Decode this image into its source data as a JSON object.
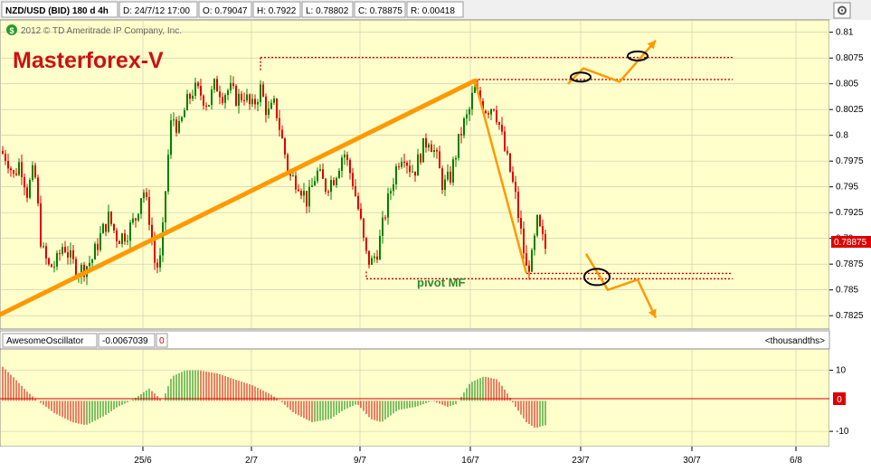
{
  "header": {
    "symbol": "NZD/USD (BID) 180 d 4h",
    "date": "D: 24/7/12 17:00",
    "open": "O: 0.79047",
    "high": "H: 0.7922",
    "low": "L: 0.78802",
    "close": "C: 0.78875",
    "range": "R: 0.00418"
  },
  "copyright": "2012 © TD Ameritrade IP Company, Inc.",
  "watermark": "Masterforex-V",
  "annotation_label": "pivot MF",
  "current_price_label": "0.78875",
  "oscillator": {
    "name": "AwesomeOscillator",
    "value": "-0.0067039",
    "flag": "0",
    "units": "<thousandths>",
    "zero_label": "0"
  },
  "colors": {
    "background": "#ffffcc",
    "up_candle": "#008000",
    "down_candle": "#dd0000",
    "trendline": "#ff9900",
    "level_line": "#dd0000",
    "label_green": "#2a8a2a",
    "watermark_red": "#cc1111"
  },
  "icons": {
    "settings": "gear-icon",
    "logo": "green-circle-icon"
  },
  "chart_data": [
    {
      "type": "candlestick",
      "title": "NZD/USD (BID) 180 d 4h",
      "x_ticks": [
        "25/6",
        "2/7",
        "9/7",
        "16/7",
        "23/7",
        "30/7",
        "6/8"
      ],
      "y_ticks": [
        0.81,
        0.8075,
        0.805,
        0.8025,
        0.8,
        0.7975,
        0.795,
        0.7925,
        0.79,
        0.7875,
        0.785,
        0.7825
      ],
      "ylim": [
        0.7812,
        0.8112
      ],
      "close_path": [
        [
          0,
          0.7985
        ],
        [
          8,
          0.7978
        ],
        [
          15,
          0.796
        ],
        [
          22,
          0.7975
        ],
        [
          30,
          0.7945
        ],
        [
          38,
          0.7968
        ],
        [
          46,
          0.789
        ],
        [
          54,
          0.7872
        ],
        [
          62,
          0.7875
        ],
        [
          70,
          0.7895
        ],
        [
          78,
          0.788
        ],
        [
          86,
          0.7868
        ],
        [
          94,
          0.7872
        ],
        [
          102,
          0.788
        ],
        [
          110,
          0.79
        ],
        [
          120,
          0.792
        ],
        [
          130,
          0.79
        ],
        [
          140,
          0.7905
        ],
        [
          150,
          0.792
        ],
        [
          158,
          0.795
        ],
        [
          165,
          0.792
        ],
        [
          172,
          0.787
        ],
        [
          178,
          0.788
        ],
        [
          184,
          0.796
        ],
        [
          190,
          0.802
        ],
        [
          198,
          0.8005
        ],
        [
          206,
          0.803
        ],
        [
          214,
          0.8045
        ],
        [
          222,
          0.804
        ],
        [
          230,
          0.803
        ],
        [
          238,
          0.805
        ],
        [
          246,
          0.804
        ],
        [
          254,
          0.8045
        ],
        [
          262,
          0.8035
        ],
        [
          270,
          0.804
        ],
        [
          278,
          0.8025
        ],
        [
          288,
          0.8045
        ],
        [
          296,
          0.802
        ],
        [
          304,
          0.803
        ],
        [
          312,
          0.7995
        ],
        [
          320,
          0.796
        ],
        [
          330,
          0.7955
        ],
        [
          340,
          0.7935
        ],
        [
          350,
          0.7965
        ],
        [
          360,
          0.795
        ],
        [
          370,
          0.796
        ],
        [
          380,
          0.7985
        ],
        [
          390,
          0.7955
        ],
        [
          398,
          0.792
        ],
        [
          404,
          0.7885
        ],
        [
          410,
          0.7875
        ],
        [
          418,
          0.789
        ],
        [
          426,
          0.7925
        ],
        [
          434,
          0.7955
        ],
        [
          440,
          0.7975
        ],
        [
          446,
          0.7985
        ],
        [
          452,
          0.797
        ],
        [
          458,
          0.7965
        ],
        [
          466,
          0.7985
        ],
        [
          474,
          0.7998
        ],
        [
          482,
          0.798
        ],
        [
          490,
          0.795
        ],
        [
          498,
          0.796
        ],
        [
          506,
          0.799
        ],
        [
          512,
          0.801
        ],
        [
          518,
          0.802
        ],
        [
          524,
          0.8045
        ],
        [
          530,
          0.8035
        ],
        [
          538,
          0.8025
        ],
        [
          546,
          0.803
        ],
        [
          552,
          0.801
        ],
        [
          558,
          0.7985
        ],
        [
          564,
          0.7965
        ],
        [
          570,
          0.794
        ],
        [
          576,
          0.7905
        ],
        [
          582,
          0.787
        ],
        [
          588,
          0.788
        ],
        [
          594,
          0.7915
        ],
        [
          600,
          0.7898
        ],
        [
          604,
          0.7888
        ]
      ],
      "annotations": {
        "trendline": [
          [
            0,
            0.7826
          ],
          [
            525,
            0.8053
          ]
        ],
        "drop_line": [
          [
            525,
            0.8053
          ],
          [
            582,
            0.7866
          ]
        ],
        "resistance_high": {
          "y": 0.80755,
          "x_from": 288,
          "x_to": 810
        },
        "resistance_low": {
          "y": 0.80542,
          "x_from": 525,
          "x_to": 810
        },
        "support_high": {
          "y": 0.7866,
          "x_from": 582,
          "x_to": 810
        },
        "support_low": {
          "y": 0.78608,
          "x_from": 405,
          "x_to": 810
        },
        "up_arrow": [
          [
            628,
            0.805
          ],
          [
            645,
            0.8065
          ],
          [
            685,
            0.8052
          ],
          [
            725,
            0.8092
          ]
        ],
        "down_arrow": [
          [
            648,
            0.7885
          ],
          [
            672,
            0.785
          ],
          [
            705,
            0.786
          ],
          [
            725,
            0.7823
          ]
        ],
        "ellipses": [
          [
            642,
            0.80565
          ],
          [
            705,
            0.8077
          ],
          [
            660,
            0.78625
          ]
        ]
      }
    },
    {
      "type": "bar",
      "title": "AwesomeOscillator",
      "ylabel": "<thousandths>",
      "y_ticks": [
        10,
        0,
        -10
      ],
      "ylim": [
        -15,
        17
      ],
      "wave": [
        [
          0,
          12
        ],
        [
          14,
          8
        ],
        [
          30,
          3
        ],
        [
          42,
          0
        ],
        [
          60,
          -4
        ],
        [
          80,
          -7
        ],
        [
          95,
          -8
        ],
        [
          115,
          -5
        ],
        [
          130,
          -2
        ],
        [
          145,
          0
        ],
        [
          165,
          4
        ],
        [
          180,
          0
        ],
        [
          190,
          8
        ],
        [
          205,
          10
        ],
        [
          220,
          10
        ],
        [
          240,
          9
        ],
        [
          260,
          7
        ],
        [
          280,
          5
        ],
        [
          300,
          2
        ],
        [
          310,
          0
        ],
        [
          325,
          -4
        ],
        [
          345,
          -7
        ],
        [
          365,
          -6
        ],
        [
          380,
          -3
        ],
        [
          395,
          -1
        ],
        [
          410,
          -6
        ],
        [
          422,
          -7
        ],
        [
          440,
          -3
        ],
        [
          460,
          -2
        ],
        [
          478,
          0
        ],
        [
          495,
          -2
        ],
        [
          505,
          -1
        ],
        [
          520,
          6
        ],
        [
          535,
          8
        ],
        [
          550,
          7
        ],
        [
          562,
          2
        ],
        [
          570,
          -2
        ],
        [
          582,
          -7
        ],
        [
          592,
          -9
        ],
        [
          603,
          -8
        ]
      ]
    }
  ]
}
